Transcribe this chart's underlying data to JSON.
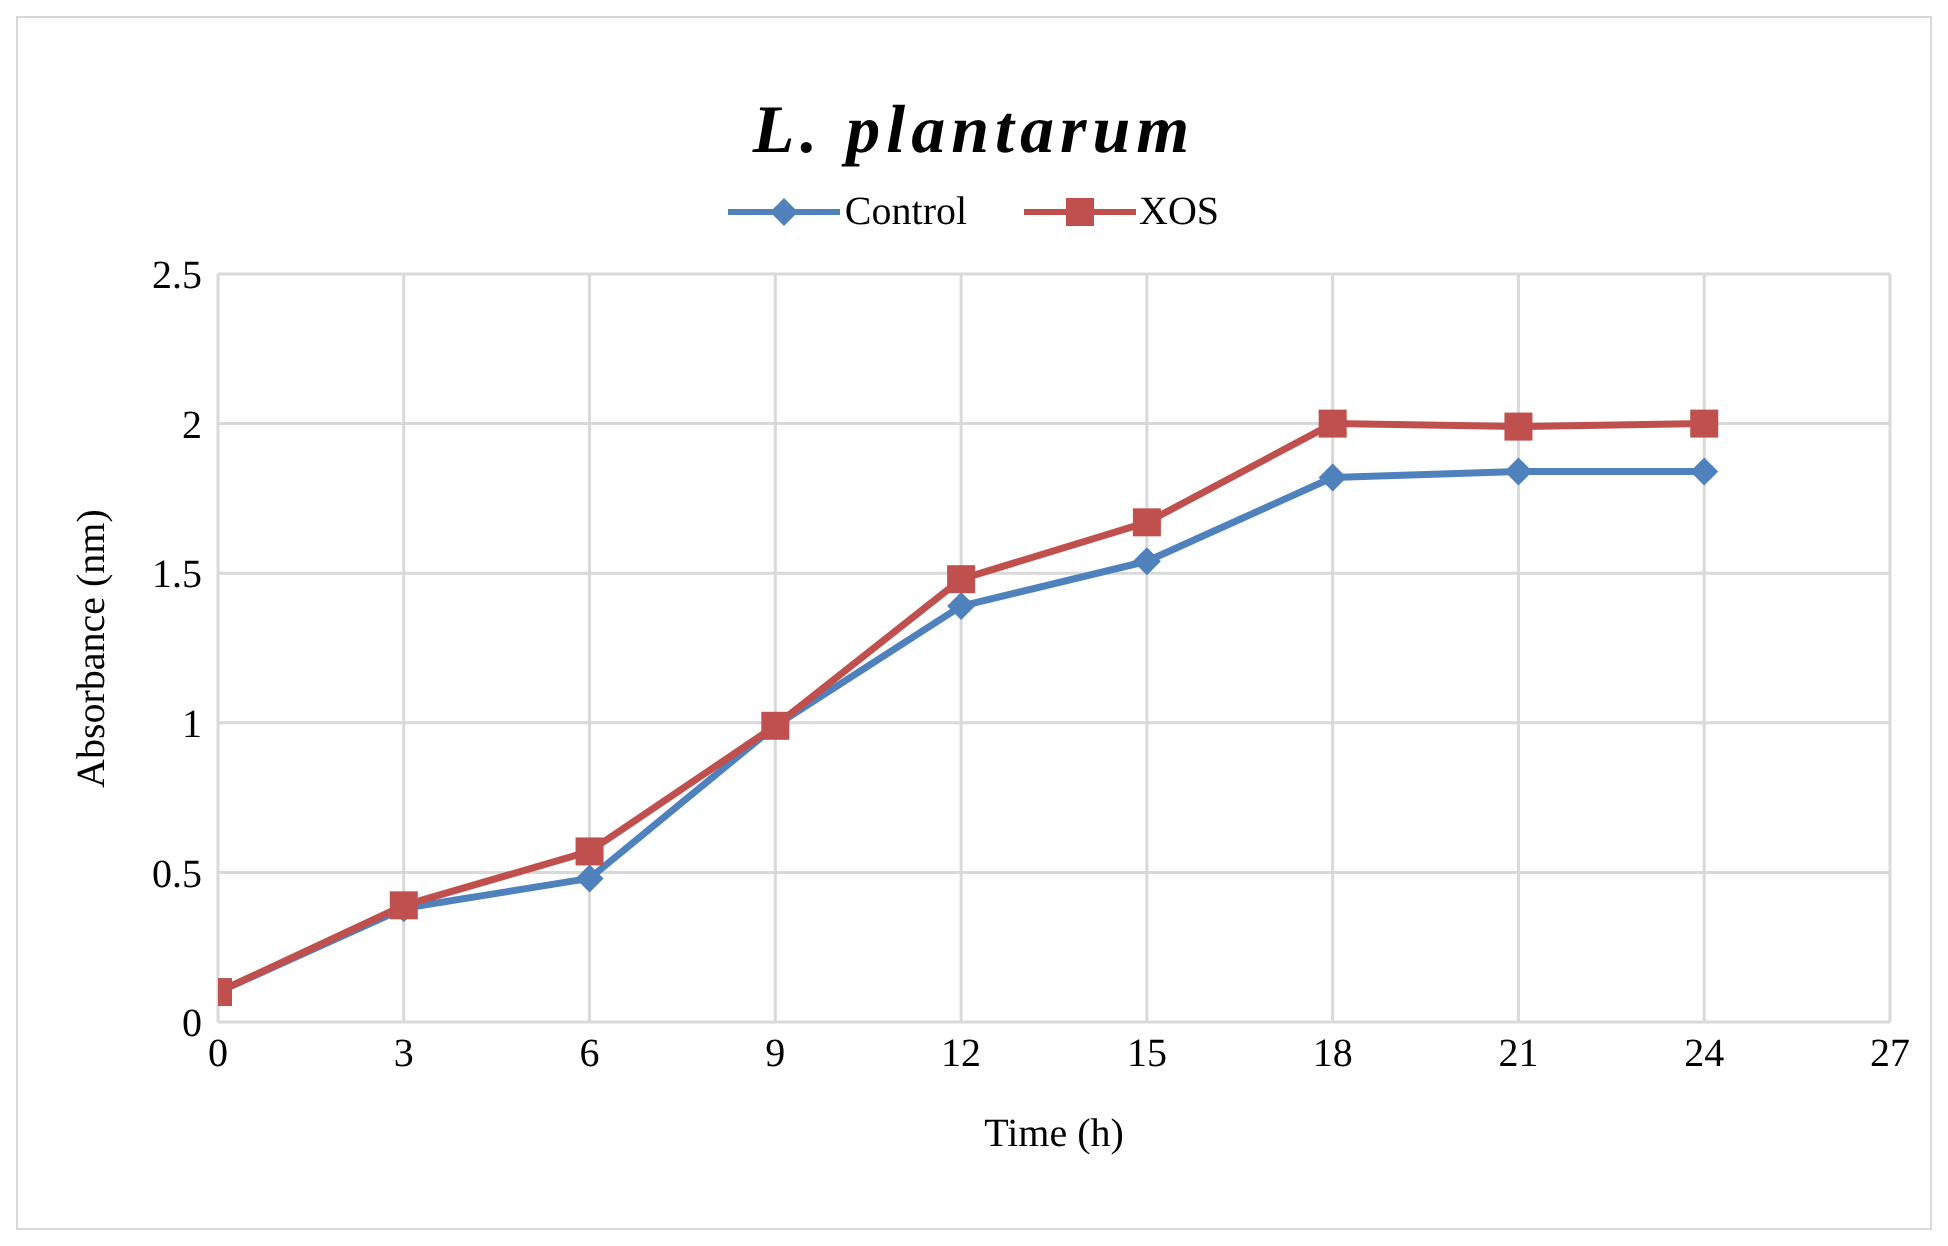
{
  "chart_data": {
    "type": "line",
    "title": "L. plantarum",
    "xlabel": "Time (h)",
    "ylabel": "Absorbance (nm)",
    "x": [
      0,
      3,
      6,
      9,
      12,
      15,
      18,
      21,
      24
    ],
    "series": [
      {
        "name": "Control",
        "color": "#4f81bd",
        "marker": "diamond",
        "values": [
          0.1,
          0.38,
          0.48,
          0.99,
          1.39,
          1.54,
          1.82,
          1.84,
          1.84
        ]
      },
      {
        "name": "XOS",
        "color": "#c0504d",
        "marker": "square",
        "values": [
          0.1,
          0.39,
          0.57,
          0.99,
          1.48,
          1.67,
          2.0,
          1.99,
          2.0
        ]
      }
    ],
    "xlim": [
      0,
      27
    ],
    "xticks": [
      0,
      3,
      6,
      9,
      12,
      15,
      18,
      21,
      24,
      27
    ],
    "ylim": [
      0,
      2.5
    ],
    "yticks": [
      0,
      0.5,
      1,
      1.5,
      2,
      2.5
    ],
    "grid": true,
    "legend": "top",
    "line_style": "solid"
  }
}
